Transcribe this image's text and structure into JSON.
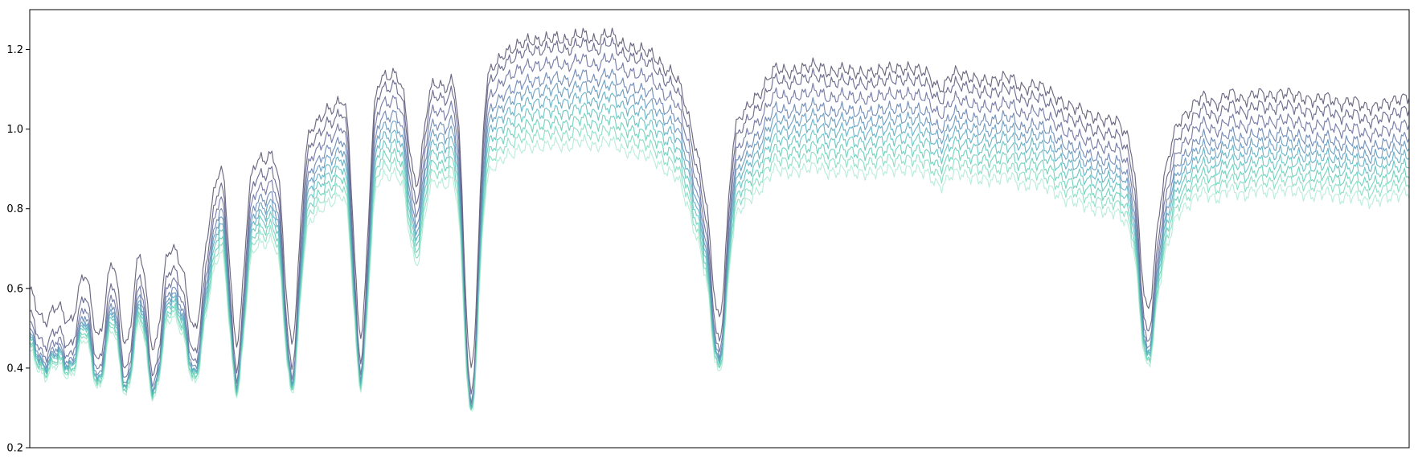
{
  "chart_data": {
    "type": "line",
    "title": "",
    "xlabel": "",
    "ylabel": "",
    "ylim": [
      0.2,
      1.3
    ],
    "xlim": [
      0,
      100
    ],
    "x_ticks_visible": false,
    "grid": false,
    "legend": "none",
    "y_ticks": [
      {
        "value": 0.2,
        "label": "0.2"
      },
      {
        "value": 0.4,
        "label": "0.4"
      },
      {
        "value": 0.6,
        "label": "0.6"
      },
      {
        "value": 0.8,
        "label": "0.8"
      },
      {
        "value": 1.0,
        "label": "1.0"
      },
      {
        "value": 1.2,
        "label": "1.2"
      }
    ],
    "series": [
      {
        "color": "#5e5873",
        "dip": 0.18,
        "cont": 0.1,
        "alpha": 0.9
      },
      {
        "color": "#5f5f86",
        "dip": 0.07,
        "cont": 0.08,
        "alpha": 0.9
      },
      {
        "color": "#63699a",
        "dip": 0.03,
        "cont": 0.04,
        "alpha": 0.85
      },
      {
        "color": "#5f7cad",
        "dip": 0.01,
        "cont": 0.0,
        "alpha": 0.85
      },
      {
        "color": "#5b92b8",
        "dip": 0.0,
        "cont": -0.03,
        "alpha": 0.85
      },
      {
        "color": "#55a8bd",
        "dip": 0.0,
        "cont": -0.06,
        "alpha": 0.85
      },
      {
        "color": "#4fbcb8",
        "dip": 0.0,
        "cont": -0.09,
        "alpha": 0.8
      },
      {
        "color": "#55c9b0",
        "dip": -0.01,
        "cont": -0.12,
        "alpha": 0.8
      },
      {
        "color": "#6fd6b6",
        "dip": -0.01,
        "cont": -0.15,
        "alpha": 0.75
      },
      {
        "color": "#9fe6cc",
        "dip": -0.02,
        "cont": -0.18,
        "alpha": 0.7
      }
    ],
    "anchors_x": [
      0,
      1,
      2,
      3,
      4,
      5,
      6,
      7,
      8,
      9,
      10,
      11,
      12,
      13,
      14,
      15,
      16,
      17,
      18,
      19,
      20,
      21,
      22,
      23,
      24,
      25,
      26,
      27,
      28,
      29,
      30,
      31,
      32,
      33,
      34,
      35,
      36,
      37,
      38,
      39,
      40,
      41,
      42,
      43,
      44,
      45,
      46,
      47,
      48,
      49,
      50,
      51,
      52,
      53,
      54,
      55,
      56,
      57,
      58,
      59,
      60,
      61,
      62,
      63,
      64,
      65,
      66,
      67,
      68,
      69,
      70,
      71,
      72,
      73,
      74,
      75,
      76,
      77,
      78,
      79,
      80,
      81,
      82,
      83,
      84,
      85,
      86,
      87,
      88,
      89,
      90,
      91,
      92,
      93,
      94,
      95,
      96,
      97,
      98,
      99,
      100
    ],
    "base_y": [
      0.49,
      0.41,
      0.45,
      0.41,
      0.53,
      0.37,
      0.56,
      0.35,
      0.58,
      0.34,
      0.58,
      0.55,
      0.39,
      0.66,
      0.78,
      0.36,
      0.76,
      0.82,
      0.78,
      0.36,
      0.83,
      0.92,
      0.95,
      0.92,
      0.38,
      0.95,
      1.03,
      1.0,
      0.76,
      0.99,
      1.0,
      0.95,
      0.29,
      0.96,
      1.07,
      1.1,
      1.12,
      1.12,
      1.13,
      1.12,
      1.14,
      1.12,
      1.14,
      1.11,
      1.1,
      1.09,
      1.05,
      1.02,
      0.89,
      0.72,
      0.42,
      0.86,
      0.95,
      0.99,
      1.05,
      1.04,
      1.05,
      1.06,
      1.04,
      1.05,
      1.04,
      1.04,
      1.05,
      1.05,
      1.05,
      1.04,
      1.0,
      1.04,
      1.03,
      1.02,
      1.02,
      1.03,
      1.0,
      1.01,
      0.99,
      0.96,
      0.95,
      0.93,
      0.92,
      0.91,
      0.81,
      0.44,
      0.72,
      0.89,
      0.94,
      0.98,
      0.96,
      0.99,
      0.97,
      0.99,
      0.98,
      0.99,
      0.98,
      0.97,
      0.98,
      0.96,
      0.97,
      0.95,
      0.96,
      0.97,
      0.98
    ]
  }
}
